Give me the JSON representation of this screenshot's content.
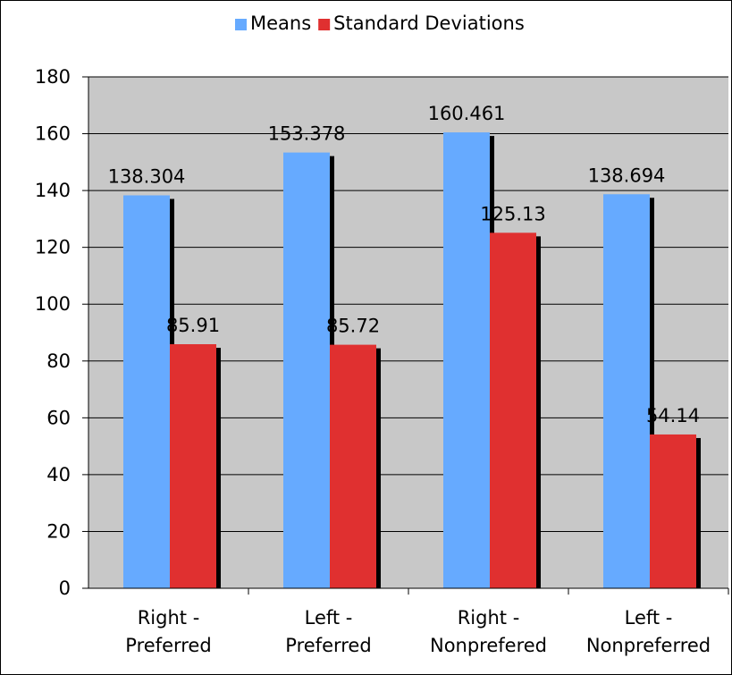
{
  "chart_data": {
    "type": "bar",
    "categories": [
      [
        "Right -",
        "Preferred"
      ],
      [
        "Left -",
        "Preferred"
      ],
      [
        "Right -",
        "Nonprefered"
      ],
      [
        "Left -",
        "Nonpreferred"
      ]
    ],
    "series": [
      {
        "name": "Means",
        "color": "#66aaff",
        "values": [
          138.304,
          153.378,
          160.461,
          138.694
        ],
        "labels": [
          "138.304",
          "153.378",
          "160.461",
          "138.694"
        ]
      },
      {
        "name": "Standard Deviations",
        "color": "#e03030",
        "values": [
          85.91,
          85.72,
          125.13,
          54.14
        ],
        "labels": [
          "85.91",
          "85.72",
          "125.13",
          "54.14"
        ]
      }
    ],
    "ylim": [
      0,
      180
    ],
    "yticks": [
      0,
      20,
      40,
      60,
      80,
      100,
      120,
      140,
      160,
      180
    ],
    "grid": true,
    "plot_background": "#c8c8c8",
    "legend_position": "top"
  }
}
